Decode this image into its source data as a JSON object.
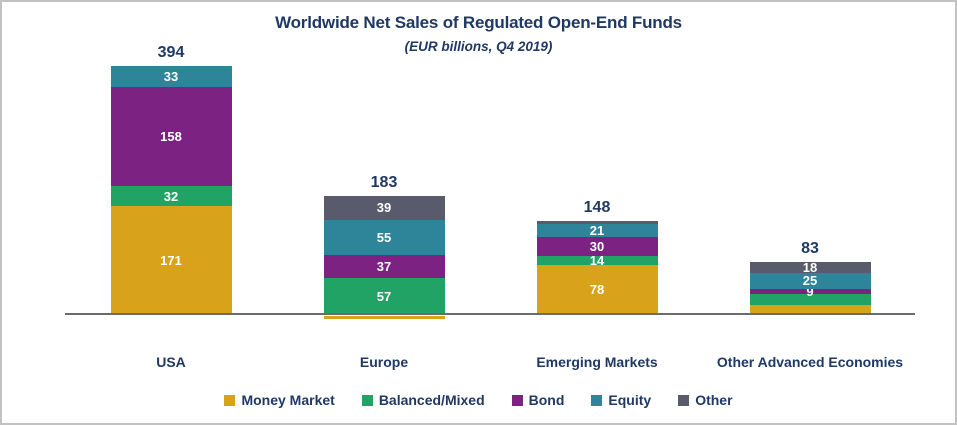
{
  "chart_data": {
    "type": "bar",
    "variant": "stacked",
    "title": "Worldwide Net Sales of Regulated Open-End Funds",
    "subtitle": "(EUR billions, Q4 2019)",
    "categories": [
      "USA",
      "Europe",
      "Emerging Markets",
      "Other Advanced Economies"
    ],
    "totals": [
      "394",
      "183",
      "148",
      "83"
    ],
    "series": [
      {
        "name": "Money Market",
        "color": "#D9A21B",
        "values": [
          171,
          -5,
          78,
          15
        ],
        "labels": [
          "171",
          "",
          "78",
          ""
        ]
      },
      {
        "name": "Balanced/Mixed",
        "color": "#21A366",
        "values": [
          32,
          57,
          14,
          16
        ],
        "labels": [
          "32",
          "57",
          "14",
          ""
        ]
      },
      {
        "name": "Bond",
        "color": "#7B2282",
        "values": [
          158,
          37,
          30,
          9
        ],
        "labels": [
          "158",
          "37",
          "30",
          "9"
        ]
      },
      {
        "name": "Equity",
        "color": "#2E8499",
        "values": [
          33,
          55,
          21,
          25
        ],
        "labels": [
          "33",
          "55",
          "21",
          "25"
        ]
      },
      {
        "name": "Other",
        "color": "#595A6B",
        "values": [
          0,
          39,
          5,
          18
        ],
        "labels": [
          "",
          "39",
          "",
          "18"
        ]
      }
    ],
    "legend": [
      "Money Market",
      "Balanced/Mixed",
      "Bond",
      "Equity",
      "Other"
    ],
    "grid": false,
    "legend_position": "bottom"
  },
  "colors": {
    "title_text": "#1F3864",
    "segment_label_text": "#FFFFFF",
    "axis_line": "#6B6B6B",
    "frame_border": "#C2C2C2",
    "background": "#FFFFFF"
  }
}
